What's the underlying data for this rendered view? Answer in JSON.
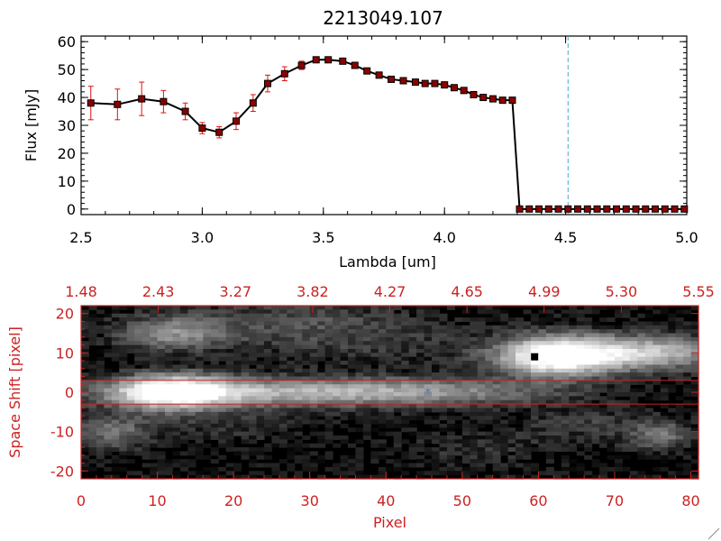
{
  "title": "2213049.107",
  "colors": {
    "axis_top": "#000000",
    "axis_bottom": "#cc2222",
    "marker": "#8b0000",
    "errorbar": "#dd1111",
    "line": "#000000",
    "vline": "#44aacc",
    "source": "#000000",
    "target": "#5577bb"
  },
  "chart_data": [
    {
      "type": "line",
      "title": "2213049.107",
      "xlabel": "Lambda [um]",
      "ylabel": "Flux [mJy]",
      "xlim": [
        2.5,
        5.0
      ],
      "ylim": [
        -2,
        62
      ],
      "xticks": [
        "2.5",
        "3.0",
        "3.5",
        "4.0",
        "4.5",
        "5.0"
      ],
      "yticks": [
        "0",
        "10",
        "20",
        "30",
        "40",
        "50",
        "60"
      ],
      "vertical_line_at": 4.51,
      "series": [
        {
          "x": [
            2.54,
            2.65,
            2.75,
            2.84,
            2.93,
            3.0,
            3.07,
            3.14,
            3.21,
            3.27,
            3.34,
            3.41,
            3.47,
            3.52,
            3.58,
            3.63,
            3.68,
            3.73,
            3.78,
            3.83,
            3.88,
            3.92,
            3.96,
            4.0,
            4.04,
            4.08,
            4.12,
            4.16,
            4.2,
            4.24,
            4.28,
            4.31,
            4.35,
            4.39,
            4.43,
            4.47,
            4.51,
            4.55,
            4.59,
            4.63,
            4.67,
            4.71,
            4.75,
            4.79,
            4.83,
            4.87,
            4.91,
            4.95,
            4.99
          ],
          "y": [
            38,
            37.5,
            39.5,
            38.5,
            35,
            29,
            27.5,
            31.5,
            38,
            45,
            48.5,
            51.5,
            53.5,
            53.5,
            53,
            51.5,
            49.5,
            48,
            46.5,
            46,
            45.5,
            45,
            45,
            44.5,
            43.5,
            42.5,
            41,
            40,
            39.5,
            39,
            39,
            0,
            0,
            0,
            0,
            0,
            0,
            0,
            0,
            0,
            0,
            0,
            0,
            0,
            0,
            0,
            0,
            0,
            0
          ],
          "err": [
            6,
            5.5,
            6,
            4,
            3,
            2,
            2,
            3,
            3,
            3,
            2.5,
            1.5,
            1,
            1,
            1,
            1,
            1,
            1,
            1,
            1,
            1,
            1,
            1,
            1,
            1,
            1,
            1,
            1,
            1,
            1,
            1,
            0,
            0,
            0,
            0,
            0,
            0,
            0,
            0,
            0,
            0,
            0,
            0,
            0,
            0,
            0,
            0,
            0,
            0
          ]
        }
      ]
    },
    {
      "type": "heatmap",
      "xlabel": "Pixel",
      "ylabel": "Space Shift [pixel]",
      "xlim": [
        0,
        81
      ],
      "ylim": [
        -22,
        22
      ],
      "xticks": [
        "0",
        "10",
        "20",
        "30",
        "40",
        "50",
        "60",
        "70",
        "80"
      ],
      "yticks": [
        "-20",
        "-10",
        "0",
        "10",
        "20"
      ],
      "top_ticks": [
        "1.48",
        "2.43",
        "3.27",
        "3.82",
        "4.27",
        "4.65",
        "4.99",
        "5.30",
        "5.55"
      ],
      "hlines": [
        3,
        -3
      ],
      "blobs": [
        {
          "x": 12,
          "y": 0,
          "sx": 5,
          "sy": 3,
          "amp": 1.0
        },
        {
          "x": 22,
          "y": 0,
          "sx": 14,
          "sy": 2.5,
          "amp": 0.55
        },
        {
          "x": 45,
          "y": 0,
          "sx": 12,
          "sy": 2.5,
          "amp": 0.42
        },
        {
          "x": 62,
          "y": 9,
          "sx": 5,
          "sy": 3.5,
          "amp": 1.0
        },
        {
          "x": 73,
          "y": 10,
          "sx": 8,
          "sy": 3,
          "amp": 0.75
        },
        {
          "x": 12,
          "y": 15,
          "sx": 5,
          "sy": 3,
          "amp": 0.45
        },
        {
          "x": 4,
          "y": -10,
          "sx": 4,
          "sy": 3,
          "amp": 0.35
        },
        {
          "x": 76,
          "y": -11,
          "sx": 3,
          "sy": 2.5,
          "amp": 0.35
        },
        {
          "x": 28,
          "y": 18,
          "sx": 10,
          "sy": 4,
          "amp": 0.2
        },
        {
          "x": 40,
          "y": 12,
          "sx": 12,
          "sy": 4,
          "amp": 0.12
        },
        {
          "x": 66,
          "y": -8,
          "sx": 6,
          "sy": 3,
          "amp": 0.15
        },
        {
          "x": 52,
          "y": -14,
          "sx": 6,
          "sy": 3,
          "amp": 0.12
        },
        {
          "x": 20,
          "y": -8,
          "sx": 6,
          "sy": 3,
          "amp": 0.12
        }
      ],
      "source_marker": {
        "x": 59.5,
        "y": 9
      },
      "target_marker": {
        "x": 45.5,
        "y": 0
      }
    }
  ]
}
